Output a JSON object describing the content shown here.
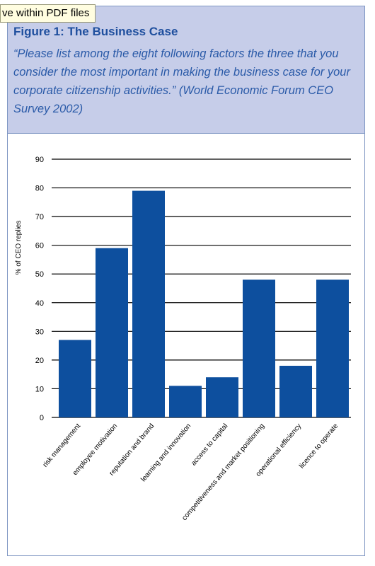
{
  "tooltip": "ve within PDF files",
  "figure": {
    "title": "Figure 1: The Business Case",
    "subtitle": "“Please list among the eight following factors the three that you consider the most important in making the business case for your corporate citizenship activities.” (World Economic Forum CEO Survey 2002)"
  },
  "chart_data": {
    "type": "bar",
    "ylabel": "% of CEO replies",
    "ylim": [
      0,
      90
    ],
    "yticks": [
      0,
      10,
      20,
      30,
      40,
      50,
      60,
      70,
      80,
      90
    ],
    "grid": true,
    "categories": [
      "risk management",
      "employee motivation",
      "reputation and brand",
      "learning and innovation",
      "access to capital",
      "competitiveness and market positioning",
      "operational efficiency",
      "licence to operate"
    ],
    "values": [
      27,
      59,
      79,
      11,
      14,
      48,
      18,
      48
    ],
    "bar_color": "#0d4f9e"
  }
}
